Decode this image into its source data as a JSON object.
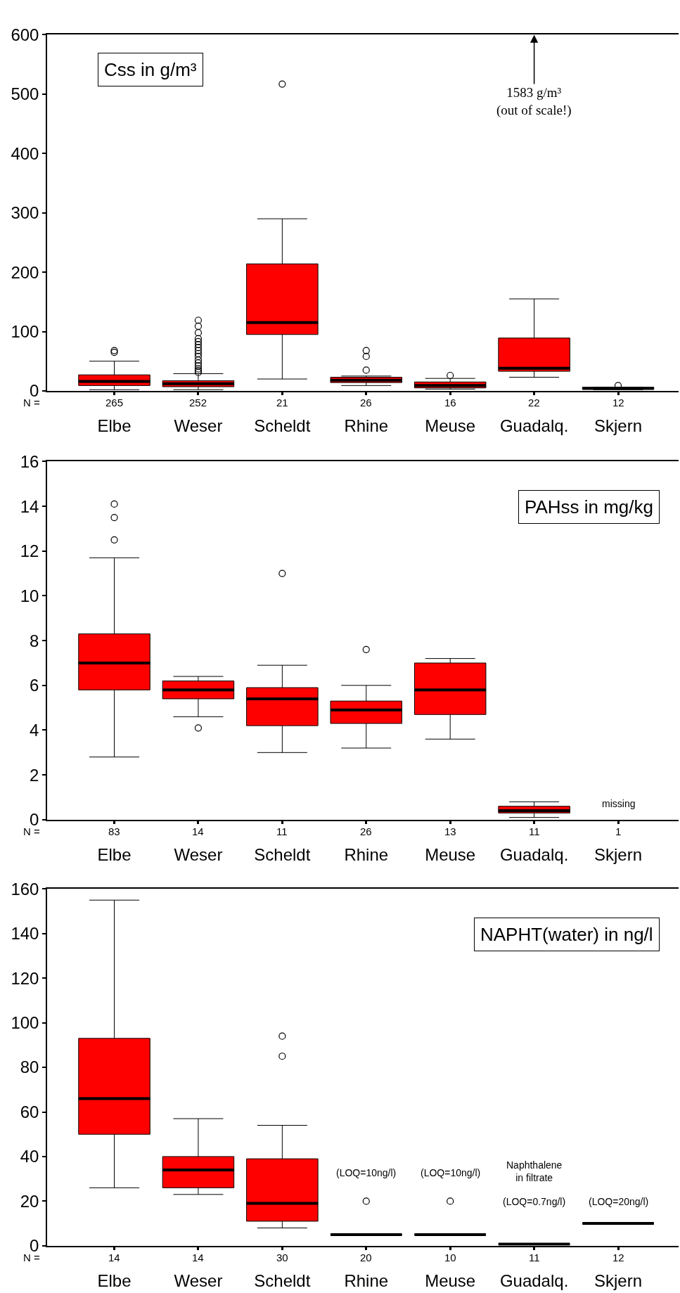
{
  "chart_data": [
    {
      "type": "box",
      "title": "Css in g/m³",
      "categories": [
        "Elbe",
        "Weser",
        "Scheldt",
        "Rhine",
        "Meuse",
        "Guadalq.",
        "Skjern"
      ],
      "series": [
        {
          "color": "#ff0000",
          "boxes": [
            {
              "low": 2,
              "q1": 9,
              "median": 16,
              "q3": 27,
              "high": 50,
              "outliers": [
                65,
                68
              ]
            },
            {
              "low": 2,
              "q1": 7,
              "median": 12,
              "q3": 17,
              "high": 29,
              "outliers": [
                31,
                34,
                37,
                42,
                47,
                52,
                58,
                63,
                68,
                73,
                78,
                83,
                88,
                98,
                109,
                119
              ]
            },
            {
              "low": 20,
              "q1": 95,
              "median": 115,
              "q3": 214,
              "high": 290,
              "outliers": [
                517
              ]
            },
            {
              "low": 9,
              "q1": 14,
              "median": 18,
              "q3": 23,
              "high": 25,
              "outliers": [
                35,
                58,
                68
              ]
            },
            {
              "low": 3,
              "q1": 5,
              "median": 9,
              "q3": 15,
              "high": 21,
              "outliers": [
                26
              ]
            },
            {
              "low": 23,
              "q1": 33,
              "median": 38,
              "q3": 89,
              "high": 155
            },
            {
              "low": 2,
              "q1": 3,
              "median": 4,
              "q3": 6,
              "high": 6,
              "outliers": [
                9
              ]
            }
          ]
        }
      ],
      "ylim": [
        0,
        600
      ],
      "yticks": [
        0,
        100,
        200,
        300,
        400,
        500,
        600
      ],
      "annotations": [
        "N =",
        "265",
        "252",
        "21",
        "26",
        "16",
        "22",
        "12",
        "1583 g/m³\n(out of scale!)"
      ]
    },
    {
      "type": "box",
      "title": "PAHss in mg/kg",
      "categories": [
        "Elbe",
        "Weser",
        "Scheldt",
        "Rhine",
        "Meuse",
        "Guadalq.",
        "Skjern"
      ],
      "series": [
        {
          "color": "#ff0000",
          "boxes": [
            {
              "low": 2.8,
              "q1": 5.8,
              "median": 7.0,
              "q3": 8.3,
              "high": 11.7,
              "outliers": [
                12.5,
                13.5,
                14.1
              ]
            },
            {
              "low": 4.6,
              "q1": 5.4,
              "median": 5.8,
              "q3": 6.2,
              "high": 6.4,
              "outliers": [
                4.1
              ]
            },
            {
              "low": 3.0,
              "q1": 4.2,
              "median": 5.4,
              "q3": 5.9,
              "high": 6.9,
              "outliers": [
                11.0
              ]
            },
            {
              "low": 3.2,
              "q1": 4.3,
              "median": 4.9,
              "q3": 5.3,
              "high": 6.0,
              "outliers": [
                7.6
              ]
            },
            {
              "low": 3.6,
              "q1": 4.7,
              "median": 5.8,
              "q3": 7.0,
              "high": 7.2
            },
            {
              "low": 0.1,
              "q1": 0.3,
              "median": 0.4,
              "q3": 0.6,
              "high": 0.8
            },
            null
          ]
        }
      ],
      "ylim": [
        0,
        16
      ],
      "yticks": [
        0,
        2,
        4,
        6,
        8,
        10,
        12,
        14,
        16
      ],
      "annotations": [
        "N =",
        "83",
        "14",
        "11",
        "26",
        "13",
        "11",
        "1",
        "missing"
      ]
    },
    {
      "type": "box",
      "title": "NAPHT(water) in ng/l",
      "categories": [
        "Elbe",
        "Weser",
        "Scheldt",
        "Rhine",
        "Meuse",
        "Guadalq.",
        "Skjern"
      ],
      "series": [
        {
          "color": "#ff0000",
          "colors": [
            "#ff0000",
            "#ff0000",
            "#ff0000",
            "#000000",
            "#000000",
            "#000000",
            "#000000"
          ],
          "boxes": [
            {
              "low": 26,
              "q1": 50,
              "median": 66,
              "q3": 93,
              "high": 155
            },
            {
              "low": 23,
              "q1": 26,
              "median": 34,
              "q3": 40,
              "high": 57
            },
            {
              "low": 8,
              "q1": 11,
              "median": 19,
              "q3": 39,
              "high": 54,
              "outliers": [
                85,
                94
              ]
            },
            {
              "low": 5,
              "q1": 5,
              "median": 5,
              "q3": 5,
              "high": 5,
              "outliers": [
                20
              ]
            },
            {
              "low": 5,
              "q1": 5,
              "median": 5,
              "q3": 5,
              "high": 5,
              "outliers": [
                20
              ]
            },
            {
              "low": 0.7,
              "q1": 0.7,
              "median": 0.7,
              "q3": 0.7,
              "high": 0.7
            },
            {
              "low": 10,
              "q1": 10,
              "median": 10,
              "q3": 10,
              "high": 10
            }
          ]
        }
      ],
      "ylim": [
        0,
        160
      ],
      "yticks": [
        0,
        20,
        40,
        60,
        80,
        100,
        120,
        140,
        160
      ],
      "annotations": [
        "N =",
        "14",
        "14",
        "30",
        "20",
        "10",
        "11",
        "12",
        "(LOQ=10ng/l)",
        "(LOQ=10ng/l)",
        "Naphthalene\nin filtrate",
        "(LOQ=0.7ng/l)",
        "(LOQ=20ng/l)"
      ]
    }
  ]
}
